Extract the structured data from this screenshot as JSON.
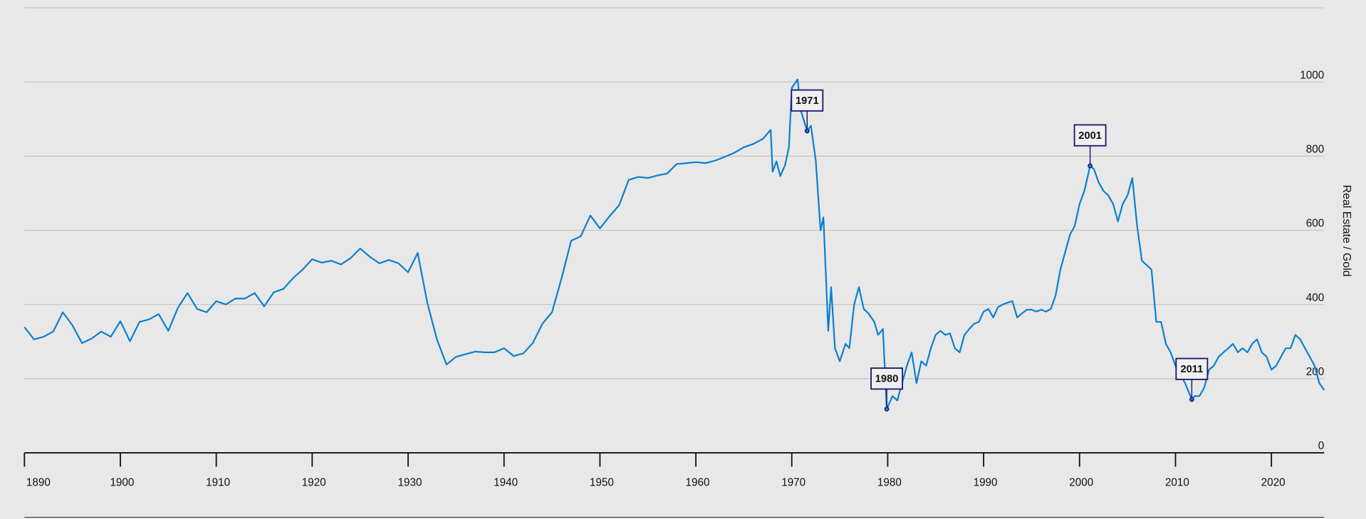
{
  "chart_data": {
    "type": "line",
    "y_axis_label": "Real Estate / Gold",
    "color": "#0a7fd0",
    "x": [
      1890,
      1891,
      1892,
      1893,
      1894,
      1895,
      1896,
      1897,
      1898,
      1899,
      1900,
      1901,
      1902,
      1903,
      1904,
      1905,
      1906,
      1907,
      1908,
      1909,
      1910,
      1911,
      1912,
      1913,
      1914,
      1915,
      1916,
      1917,
      1918,
      1919,
      1920,
      1921,
      1922,
      1923,
      1924,
      1925,
      1926,
      1927,
      1928,
      1929,
      1930,
      1931,
      1932,
      1933,
      1934,
      1935,
      1936,
      1937,
      1938,
      1939,
      1940,
      1941,
      1942,
      1943,
      1944,
      1945,
      1946,
      1947,
      1948,
      1949,
      1950,
      1951,
      1952,
      1953,
      1954,
      1955,
      1956,
      1957,
      1958,
      1959,
      1960,
      1961,
      1962,
      1963,
      1964,
      1965,
      1966,
      1967,
      1967.8,
      1968,
      1968.4,
      1968.8,
      1969.3,
      1969.7,
      1970,
      1970.6,
      1971,
      1971.6,
      1972,
      1972.5,
      1973,
      1973.3,
      1973.8,
      1974.1,
      1974.5,
      1975,
      1975.6,
      1976,
      1976.5,
      1977,
      1977.5,
      1978,
      1978.6,
      1979,
      1979.5,
      1979.9,
      1980.5,
      1981,
      1981.5,
      1982,
      1982.5,
      1983,
      1983.5,
      1984,
      1984.5,
      1985,
      1985.5,
      1986,
      1986.5,
      1987,
      1987.5,
      1988,
      1988.5,
      1989,
      1989.5,
      1990,
      1990.5,
      1991,
      1991.5,
      1992,
      1992.5,
      1993,
      1993.5,
      1994,
      1994.5,
      1995,
      1995.5,
      1996,
      1996.5,
      1997,
      1997.5,
      1998,
      1998.5,
      1999,
      1999.5,
      2000,
      2000.5,
      2001.1,
      2001.5,
      2002,
      2002.5,
      2003,
      2003.5,
      2004,
      2004.5,
      2005,
      2005.5,
      2006,
      2006.5,
      2007,
      2007.5,
      2008,
      2008.5,
      2009,
      2009.5,
      2010,
      2010.5,
      2011,
      2011.7,
      2012,
      2012.5,
      2013,
      2013.5,
      2014,
      2014.5,
      2015,
      2015.5,
      2016,
      2016.5,
      2017,
      2017.5,
      2018,
      2018.5,
      2019,
      2019.5,
      2020,
      2020.5,
      2021,
      2021.5,
      2022,
      2022.5,
      2023,
      2023.5,
      2024,
      2024.5,
      2025,
      2025.5
    ],
    "values": [
      339,
      306,
      313,
      327,
      379,
      344,
      296,
      308,
      327,
      313,
      355,
      301,
      353,
      360,
      374,
      329,
      391,
      431,
      388,
      379,
      409,
      400,
      416,
      416,
      431,
      395,
      433,
      442,
      471,
      494,
      522,
      513,
      518,
      508,
      525,
      551,
      529,
      511,
      520,
      511,
      487,
      539,
      405,
      306,
      238,
      259,
      266,
      273,
      271,
      271,
      282,
      261,
      268,
      296,
      348,
      379,
      471,
      572,
      584,
      640,
      605,
      638,
      668,
      736,
      744,
      741,
      748,
      753,
      779,
      781,
      784,
      781,
      788,
      798,
      809,
      824,
      833,
      847,
      871,
      758,
      786,
      746,
      776,
      824,
      984,
      1007,
      918,
      868,
      882,
      788,
      600,
      635,
      329,
      447,
      282,
      247,
      294,
      282,
      400,
      447,
      388,
      376,
      353,
      318,
      334,
      118,
      153,
      141,
      188,
      235,
      271,
      188,
      247,
      235,
      282,
      318,
      329,
      318,
      322,
      282,
      271,
      318,
      334,
      348,
      353,
      381,
      388,
      365,
      393,
      400,
      405,
      409,
      365,
      376,
      386,
      386,
      381,
      386,
      381,
      388,
      424,
      494,
      541,
      588,
      612,
      671,
      706,
      774,
      765,
      729,
      706,
      694,
      671,
      624,
      671,
      694,
      741,
      612,
      518,
      506,
      494,
      353,
      353,
      294,
      271,
      235,
      212,
      188,
      144,
      153,
      153,
      176,
      224,
      235,
      259,
      271,
      282,
      294,
      271,
      282,
      271,
      294,
      306,
      271,
      259,
      224,
      235,
      259,
      282,
      282,
      318,
      306,
      282,
      259,
      235,
      188,
      169
    ],
    "annotations": [
      {
        "label": "1971",
        "x": 1971.6,
        "y": 868
      },
      {
        "label": "1980",
        "x": 1979.9,
        "y": 118
      },
      {
        "label": "2001",
        "x": 2001.1,
        "y": 774
      },
      {
        "label": "2011",
        "x": 2011.7,
        "y": 144
      }
    ],
    "xlim": [
      1890,
      2025.5
    ],
    "xticks": [
      1890,
      1900,
      1910,
      1920,
      1930,
      1940,
      1950,
      1960,
      1970,
      1980,
      1990,
      2000,
      2010,
      2020
    ],
    "ylim": [
      0,
      1200
    ],
    "yticks": [
      0,
      200,
      400,
      600,
      800,
      1000
    ],
    "grid": true
  }
}
